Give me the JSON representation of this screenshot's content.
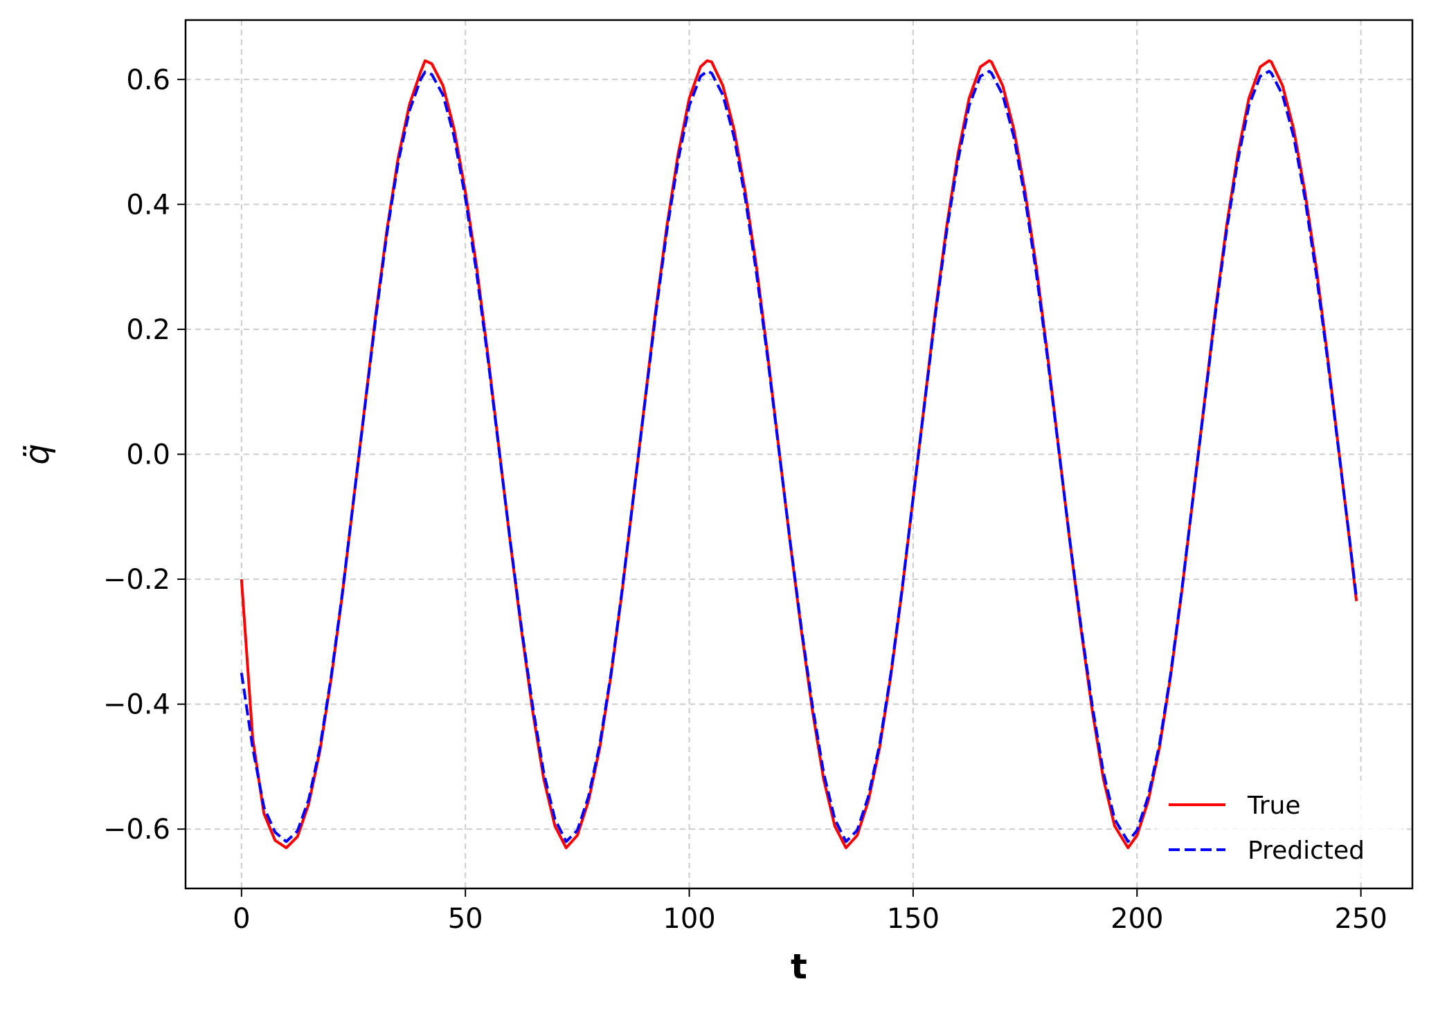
{
  "chart_data": {
    "type": "line",
    "title": "",
    "xlabel": "t",
    "ylabel": "q̈",
    "xlim": [
      -12.5,
      261.5
    ],
    "ylim": [
      -0.695,
      0.695
    ],
    "xticks": [
      0,
      50,
      100,
      150,
      200,
      250
    ],
    "xtick_labels": [
      "0",
      "50",
      "100",
      "150",
      "200",
      "250"
    ],
    "yticks": [
      -0.6,
      -0.4,
      -0.2,
      0.0,
      0.2,
      0.4,
      0.6
    ],
    "ytick_labels": [
      "−0.6",
      "−0.4",
      "−0.2",
      "0.0",
      "0.2",
      "0.4",
      "0.6"
    ],
    "grid": true,
    "legend_position": "lower right",
    "series": [
      {
        "name": "True",
        "color": "#ff0000",
        "style": "solid",
        "points": [
          [
            0,
            -0.2
          ],
          [
            2.5,
            -0.455
          ],
          [
            5,
            -0.575
          ],
          [
            7.5,
            -0.618
          ],
          [
            10,
            -0.63
          ],
          [
            12.5,
            -0.612
          ],
          [
            15,
            -0.56
          ],
          [
            17.5,
            -0.475
          ],
          [
            20,
            -0.36
          ],
          [
            22.5,
            -0.225
          ],
          [
            25,
            -0.075
          ],
          [
            27.5,
            0.075
          ],
          [
            30,
            0.225
          ],
          [
            32.5,
            0.36
          ],
          [
            35,
            0.475
          ],
          [
            37.5,
            0.56
          ],
          [
            40,
            0.612
          ],
          [
            41,
            0.63
          ],
          [
            42.5,
            0.625
          ],
          [
            45,
            0.59
          ],
          [
            47.5,
            0.52
          ],
          [
            50,
            0.42
          ],
          [
            52.5,
            0.3
          ],
          [
            55,
            0.16
          ],
          [
            57.5,
            0.01
          ],
          [
            60,
            -0.14
          ],
          [
            62.5,
            -0.28
          ],
          [
            65,
            -0.41
          ],
          [
            67.5,
            -0.52
          ],
          [
            70,
            -0.595
          ],
          [
            72.5,
            -0.63
          ],
          [
            75,
            -0.61
          ],
          [
            77.5,
            -0.555
          ],
          [
            80,
            -0.47
          ],
          [
            82.5,
            -0.355
          ],
          [
            85,
            -0.22
          ],
          [
            87.5,
            -0.07
          ],
          [
            90,
            0.08
          ],
          [
            92.5,
            0.23
          ],
          [
            95,
            0.365
          ],
          [
            97.5,
            0.48
          ],
          [
            100,
            0.57
          ],
          [
            102.5,
            0.62
          ],
          [
            104,
            0.63
          ],
          [
            105,
            0.628
          ],
          [
            107.5,
            0.59
          ],
          [
            110,
            0.52
          ],
          [
            112.5,
            0.42
          ],
          [
            115,
            0.3
          ],
          [
            117.5,
            0.16
          ],
          [
            120,
            0.01
          ],
          [
            122.5,
            -0.14
          ],
          [
            125,
            -0.28
          ],
          [
            127.5,
            -0.41
          ],
          [
            130,
            -0.52
          ],
          [
            132.5,
            -0.595
          ],
          [
            135,
            -0.63
          ],
          [
            137.5,
            -0.61
          ],
          [
            140,
            -0.555
          ],
          [
            142.5,
            -0.47
          ],
          [
            145,
            -0.355
          ],
          [
            147.5,
            -0.22
          ],
          [
            150,
            -0.07
          ],
          [
            152.5,
            0.08
          ],
          [
            155,
            0.23
          ],
          [
            157.5,
            0.365
          ],
          [
            160,
            0.48
          ],
          [
            162.5,
            0.57
          ],
          [
            165,
            0.62
          ],
          [
            167,
            0.63
          ],
          [
            167.5,
            0.628
          ],
          [
            170,
            0.59
          ],
          [
            172.5,
            0.52
          ],
          [
            175,
            0.42
          ],
          [
            177.5,
            0.3
          ],
          [
            180,
            0.16
          ],
          [
            182.5,
            0.01
          ],
          [
            185,
            -0.14
          ],
          [
            187.5,
            -0.28
          ],
          [
            190,
            -0.41
          ],
          [
            192.5,
            -0.52
          ],
          [
            195,
            -0.595
          ],
          [
            198,
            -0.63
          ],
          [
            200,
            -0.61
          ],
          [
            202.5,
            -0.555
          ],
          [
            205,
            -0.47
          ],
          [
            207.5,
            -0.355
          ],
          [
            210,
            -0.22
          ],
          [
            212.5,
            -0.07
          ],
          [
            215,
            0.08
          ],
          [
            217.5,
            0.23
          ],
          [
            220,
            0.365
          ],
          [
            222.5,
            0.48
          ],
          [
            225,
            0.57
          ],
          [
            227.5,
            0.62
          ],
          [
            229.5,
            0.63
          ],
          [
            230,
            0.628
          ],
          [
            232.5,
            0.59
          ],
          [
            235,
            0.52
          ],
          [
            237.5,
            0.42
          ],
          [
            240,
            0.3
          ],
          [
            242.5,
            0.16
          ],
          [
            245,
            0.01
          ],
          [
            247.5,
            -0.14
          ],
          [
            249,
            -0.235
          ]
        ]
      },
      {
        "name": "Predicted",
        "color": "#0000ff",
        "style": "dashed",
        "points": [
          [
            0,
            -0.35
          ],
          [
            2.5,
            -0.47
          ],
          [
            5,
            -0.565
          ],
          [
            7.5,
            -0.605
          ],
          [
            10,
            -0.62
          ],
          [
            12.5,
            -0.603
          ],
          [
            15,
            -0.553
          ],
          [
            17.5,
            -0.47
          ],
          [
            20,
            -0.357
          ],
          [
            22.5,
            -0.223
          ],
          [
            25,
            -0.075
          ],
          [
            27.5,
            0.073
          ],
          [
            30,
            0.22
          ],
          [
            32.5,
            0.355
          ],
          [
            35,
            0.468
          ],
          [
            37.5,
            0.55
          ],
          [
            40,
            0.6
          ],
          [
            41,
            0.612
          ],
          [
            42.5,
            0.608
          ],
          [
            45,
            0.575
          ],
          [
            47.5,
            0.508
          ],
          [
            50,
            0.41
          ],
          [
            52.5,
            0.29
          ],
          [
            55,
            0.155
          ],
          [
            57.5,
            0.008
          ],
          [
            60,
            -0.138
          ],
          [
            62.5,
            -0.276
          ],
          [
            65,
            -0.402
          ],
          [
            67.5,
            -0.51
          ],
          [
            70,
            -0.584
          ],
          [
            72.5,
            -0.62
          ],
          [
            75,
            -0.602
          ],
          [
            77.5,
            -0.548
          ],
          [
            80,
            -0.465
          ],
          [
            82.5,
            -0.352
          ],
          [
            85,
            -0.218
          ],
          [
            87.5,
            -0.07
          ],
          [
            90,
            0.078
          ],
          [
            92.5,
            0.225
          ],
          [
            95,
            0.358
          ],
          [
            97.5,
            0.47
          ],
          [
            100,
            0.558
          ],
          [
            102.5,
            0.605
          ],
          [
            104,
            0.613
          ],
          [
            105,
            0.61
          ],
          [
            107.5,
            0.575
          ],
          [
            110,
            0.508
          ],
          [
            112.5,
            0.41
          ],
          [
            115,
            0.29
          ],
          [
            117.5,
            0.155
          ],
          [
            120,
            0.008
          ],
          [
            122.5,
            -0.138
          ],
          [
            125,
            -0.276
          ],
          [
            127.5,
            -0.402
          ],
          [
            130,
            -0.51
          ],
          [
            132.5,
            -0.584
          ],
          [
            135,
            -0.62
          ],
          [
            137.5,
            -0.602
          ],
          [
            140,
            -0.548
          ],
          [
            142.5,
            -0.465
          ],
          [
            145,
            -0.352
          ],
          [
            147.5,
            -0.218
          ],
          [
            150,
            -0.07
          ],
          [
            152.5,
            0.078
          ],
          [
            155,
            0.225
          ],
          [
            157.5,
            0.358
          ],
          [
            160,
            0.47
          ],
          [
            162.5,
            0.558
          ],
          [
            165,
            0.605
          ],
          [
            167,
            0.613
          ],
          [
            167.5,
            0.61
          ],
          [
            170,
            0.575
          ],
          [
            172.5,
            0.508
          ],
          [
            175,
            0.41
          ],
          [
            177.5,
            0.29
          ],
          [
            180,
            0.155
          ],
          [
            182.5,
            0.008
          ],
          [
            185,
            -0.138
          ],
          [
            187.5,
            -0.276
          ],
          [
            190,
            -0.402
          ],
          [
            192.5,
            -0.51
          ],
          [
            195,
            -0.584
          ],
          [
            198,
            -0.62
          ],
          [
            200,
            -0.602
          ],
          [
            202.5,
            -0.548
          ],
          [
            205,
            -0.465
          ],
          [
            207.5,
            -0.352
          ],
          [
            210,
            -0.218
          ],
          [
            212.5,
            -0.07
          ],
          [
            215,
            0.078
          ],
          [
            217.5,
            0.225
          ],
          [
            220,
            0.358
          ],
          [
            222.5,
            0.47
          ],
          [
            225,
            0.558
          ],
          [
            227.5,
            0.605
          ],
          [
            229.5,
            0.613
          ],
          [
            230,
            0.61
          ],
          [
            232.5,
            0.575
          ],
          [
            235,
            0.508
          ],
          [
            237.5,
            0.41
          ],
          [
            240,
            0.29
          ],
          [
            242.5,
            0.155
          ],
          [
            245,
            0.008
          ],
          [
            247.5,
            -0.138
          ],
          [
            249,
            -0.23
          ]
        ]
      }
    ]
  }
}
